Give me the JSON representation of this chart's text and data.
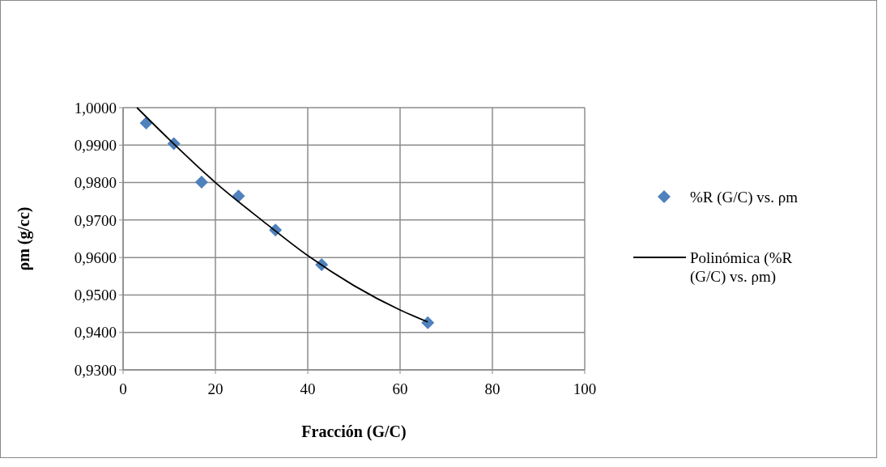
{
  "chart_data": {
    "type": "scatter",
    "xlabel": "Fracción (G/C)",
    "ylabel": "ρm (g/cc)",
    "xlim": [
      0,
      100
    ],
    "xticks": [
      0,
      20,
      40,
      60,
      80,
      100
    ],
    "ylim": [
      0.93,
      1.0
    ],
    "yticks": [
      {
        "value": 0.93,
        "label": "0,9300"
      },
      {
        "value": 0.94,
        "label": "0,9400"
      },
      {
        "value": 0.95,
        "label": "0,9500"
      },
      {
        "value": 0.96,
        "label": "0,9600"
      },
      {
        "value": 0.97,
        "label": "0,9700"
      },
      {
        "value": 0.98,
        "label": "0,9800"
      },
      {
        "value": 0.99,
        "label": "0,9900"
      },
      {
        "value": 1.0,
        "label": "1,0000"
      }
    ],
    "grid": true,
    "legend": "right",
    "series": [
      {
        "name": "%R (G/C) vs. ρm",
        "marker": "diamond",
        "color": "#4f81bd",
        "x": [
          5,
          11,
          17,
          25,
          33,
          43,
          66
        ],
        "values": [
          0.9959,
          0.9904,
          0.9801,
          0.9764,
          0.9673,
          0.9581,
          0.9426
        ]
      },
      {
        "name": "Polinómica (%R (G/C) vs. ρm)",
        "type": "line",
        "color": "#000000",
        "x": [
          3,
          10,
          20,
          30,
          40,
          50,
          60,
          66
        ],
        "values": [
          1.0,
          0.9915,
          0.98,
          0.97,
          0.9605,
          0.9525,
          0.946,
          0.9428
        ]
      }
    ]
  }
}
